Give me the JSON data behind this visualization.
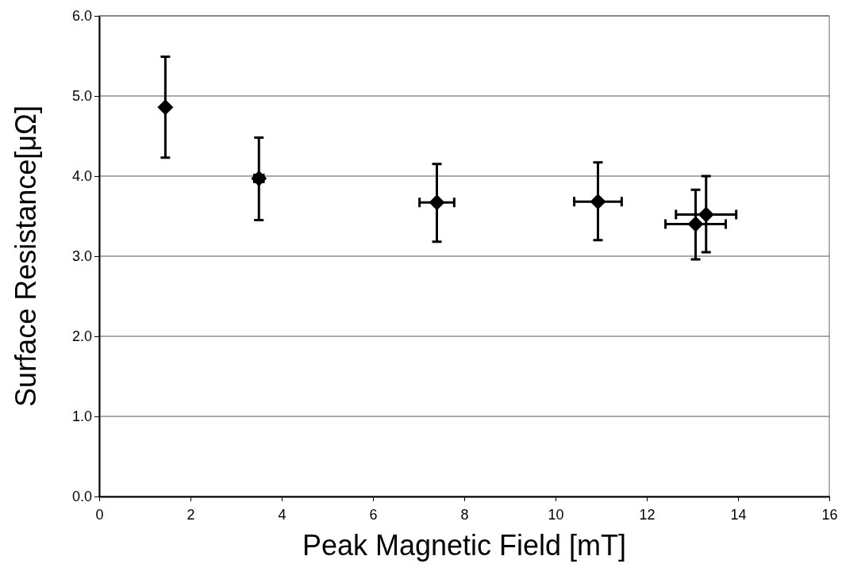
{
  "chart_data": {
    "type": "scatter",
    "xlabel": "Peak Magnetic Field [mT]",
    "ylabel": "Surface Resistance[μΩ]",
    "x": [
      1.45,
      3.5,
      7.4,
      10.93,
      13.07,
      13.3
    ],
    "values": [
      4.86,
      3.97,
      3.67,
      3.68,
      3.4,
      3.52
    ],
    "errors": [
      [
        4.23,
        5.49
      ],
      [
        3.45,
        4.48
      ],
      [
        3.18,
        4.15
      ],
      [
        3.2,
        4.17
      ],
      [
        2.96,
        3.83
      ],
      [
        3.05,
        4.0
      ]
    ],
    "xerrors": [
      null,
      0.1,
      0.38,
      0.52,
      0.66,
      0.66
    ],
    "color": "#000000",
    "marker": "diamond",
    "grid": "y",
    "xlim": [
      0,
      16
    ],
    "xticks": [
      0,
      2,
      4,
      6,
      8,
      10,
      12,
      14,
      16
    ],
    "ylim": [
      0,
      6
    ],
    "yticks": [
      {
        "value": 0,
        "label": "0.0"
      },
      {
        "value": 1,
        "label": "1.0"
      },
      {
        "value": 2,
        "label": "2.0"
      },
      {
        "value": 3,
        "label": "3.0"
      },
      {
        "value": 4,
        "label": "4.0"
      },
      {
        "value": 5,
        "label": "5.0"
      },
      {
        "value": 6,
        "label": "6.0"
      }
    ]
  }
}
